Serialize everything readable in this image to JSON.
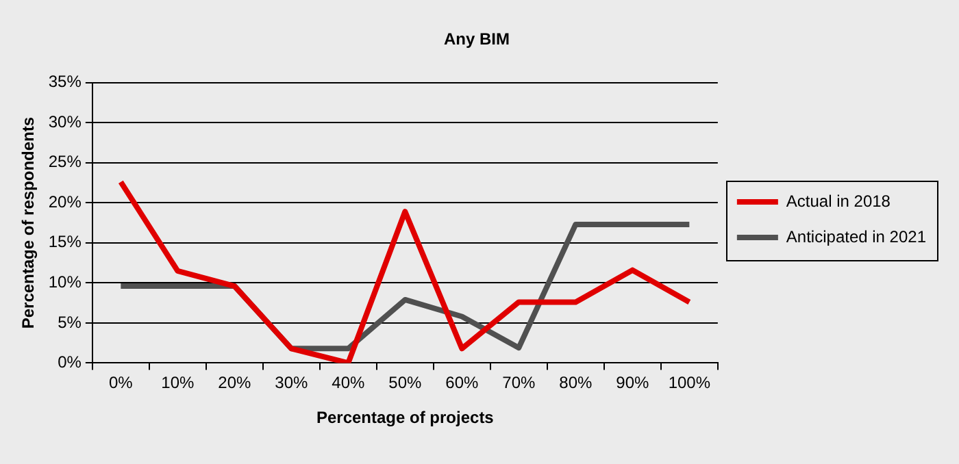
{
  "chart_data": {
    "type": "line",
    "title": "Any BIM",
    "xlabel": "Percentage of projects",
    "ylabel": "Percentage of respondents",
    "categories": [
      "0%",
      "10%",
      "20%",
      "30%",
      "40%",
      "50%",
      "60%",
      "70%",
      "80%",
      "90%",
      "100%"
    ],
    "series": [
      {
        "name": "Actual in 2018",
        "color": "#e00000",
        "values": [
          22.6,
          11.5,
          9.6,
          1.8,
          0,
          18.9,
          1.8,
          7.6,
          7.6,
          11.6,
          7.6
        ]
      },
      {
        "name": "Anticipated in 2021",
        "color": "#505050",
        "values": [
          9.6,
          9.6,
          9.6,
          1.8,
          1.8,
          7.9,
          5.8,
          1.9,
          17.3,
          17.3,
          17.3
        ]
      }
    ],
    "ylim": [
      0,
      35
    ],
    "yticks": [
      {
        "value": 0,
        "label": "0%"
      },
      {
        "value": 5,
        "label": "5%"
      },
      {
        "value": 10,
        "label": "10%"
      },
      {
        "value": 15,
        "label": "15%"
      },
      {
        "value": 20,
        "label": "20%"
      },
      {
        "value": 25,
        "label": "25%"
      },
      {
        "value": 30,
        "label": "30%"
      },
      {
        "value": 35,
        "label": "35%"
      }
    ],
    "grid": "y",
    "legend": "right",
    "marker": "none",
    "line_style": "solid"
  }
}
